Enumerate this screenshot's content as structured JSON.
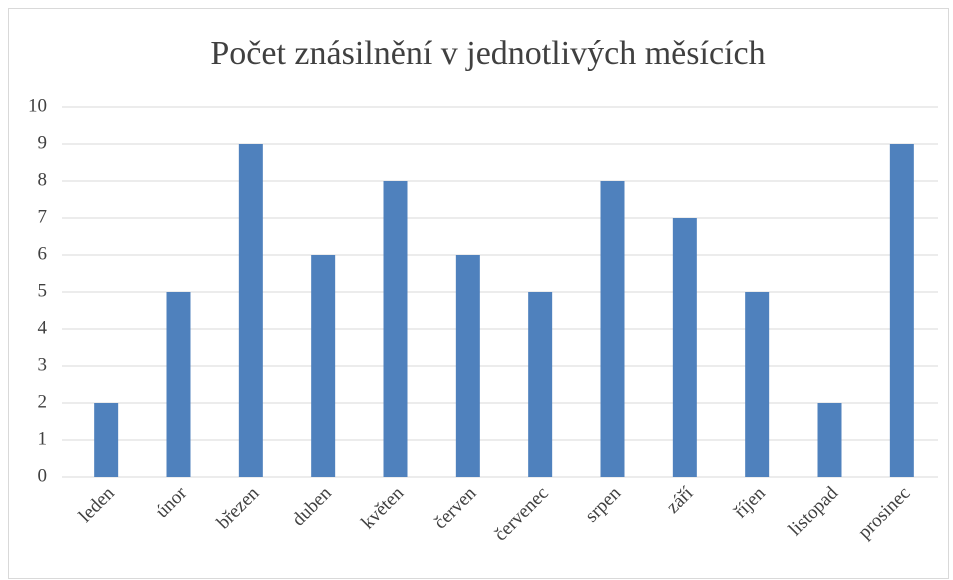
{
  "chart_data": {
    "type": "bar",
    "title": "Počet znásilnění v jednotlivých měsících",
    "categories": [
      "leden",
      "únor",
      "březen",
      "duben",
      "květen",
      "červen",
      "červenec",
      "srpen",
      "září",
      "říjen",
      "listopad",
      "prosinec"
    ],
    "values": [
      2,
      5,
      9,
      6,
      8,
      6,
      5,
      8,
      7,
      5,
      2,
      9
    ],
    "color": "#4f81bd",
    "ylim": [
      0,
      10
    ],
    "yticks": [
      0,
      1,
      2,
      3,
      4,
      5,
      6,
      7,
      8,
      9,
      10
    ],
    "grid": true
  }
}
